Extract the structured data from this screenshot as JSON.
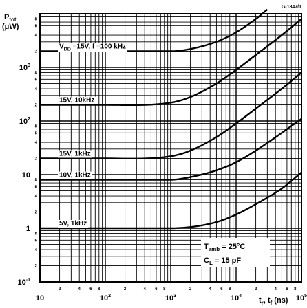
{
  "figure_id": "G-1847/1",
  "chart_data": {
    "type": "line",
    "x_scale": "log",
    "y_scale": "log",
    "xlim": [
      10,
      100000
    ],
    "ylim": [
      0.1,
      10000
    ],
    "grid": true,
    "y_axis_title": {
      "line1": "P",
      "line1_sub": "tot",
      "line2": "(μW)"
    },
    "x_axis_title": {
      "pre": "t",
      "sub1": "r",
      "mid": ", t",
      "sub2": "f",
      "post": " (ns)"
    },
    "x_major_ticks": [
      {
        "value": 10,
        "base": "10",
        "exp": ""
      },
      {
        "value": 100,
        "base": "10",
        "exp": "2"
      },
      {
        "value": 1000,
        "base": "10",
        "exp": "3"
      },
      {
        "value": 10000,
        "base": "10",
        "exp": "4"
      },
      {
        "value": 100000,
        "base": "10",
        "exp": "5"
      }
    ],
    "y_major_ticks": [
      {
        "value": 0.1,
        "base": "10",
        "exp": "-1"
      },
      {
        "value": 1,
        "base": "1",
        "exp": ""
      },
      {
        "value": 10,
        "base": "10",
        "exp": ""
      },
      {
        "value": 100,
        "base": "10",
        "exp": "2"
      },
      {
        "value": 1000,
        "base": "10",
        "exp": "3"
      }
    ],
    "minor_tick_labels": [
      "2",
      "4",
      "6",
      "8"
    ],
    "conditions": {
      "t_amb": {
        "pre": "T",
        "sub": "amb",
        "post": " = 25°C"
      },
      "c_l": {
        "pre": "C",
        "sub": "L",
        "post": " = 15 pF"
      }
    },
    "series": [
      {
        "name": "V_DD = 15V, f = 100 kHz",
        "label": {
          "pre": "V",
          "sub": "DD",
          "post": " =15V, f =100 kHz"
        },
        "x": [
          10,
          100,
          1000,
          2000,
          5000,
          10000,
          20000,
          30000
        ],
        "y": [
          2000,
          2000,
          2000,
          2200,
          3000,
          4500,
          8000,
          12000
        ]
      },
      {
        "name": "15V, 10kHz",
        "label": {
          "pre": "15V, 10kHz",
          "sub": "",
          "post": ""
        },
        "x": [
          10,
          100,
          1000,
          2000,
          5000,
          10000,
          20000,
          50000,
          100000
        ],
        "y": [
          200,
          200,
          220,
          280,
          500,
          900,
          1700,
          4000,
          8000
        ]
      },
      {
        "name": "15V, 1kHz",
        "label": {
          "pre": "15V, 1kHz",
          "sub": "",
          "post": ""
        },
        "x": [
          10,
          100,
          1000,
          2000,
          5000,
          10000,
          20000,
          50000,
          100000
        ],
        "y": [
          20,
          20,
          22,
          28,
          50,
          90,
          170,
          400,
          800
        ]
      },
      {
        "name": "10V, 1kHz",
        "label": {
          "pre": "10V, 1kHz",
          "sub": "",
          "post": ""
        },
        "x": [
          10,
          100,
          1000,
          2000,
          5000,
          10000,
          20000,
          50000,
          100000
        ],
        "y": [
          8,
          8,
          8,
          9,
          12,
          17,
          28,
          60,
          110
        ]
      },
      {
        "name": "5V, 1kHz",
        "label": {
          "pre": "5V, 1kHz",
          "sub": "",
          "post": ""
        },
        "x": [
          10,
          100,
          1000,
          2000,
          5000,
          10000,
          20000,
          50000,
          100000
        ],
        "y": [
          1,
          1,
          1,
          1.05,
          1.3,
          1.8,
          2.8,
          5.5,
          11
        ]
      }
    ]
  }
}
